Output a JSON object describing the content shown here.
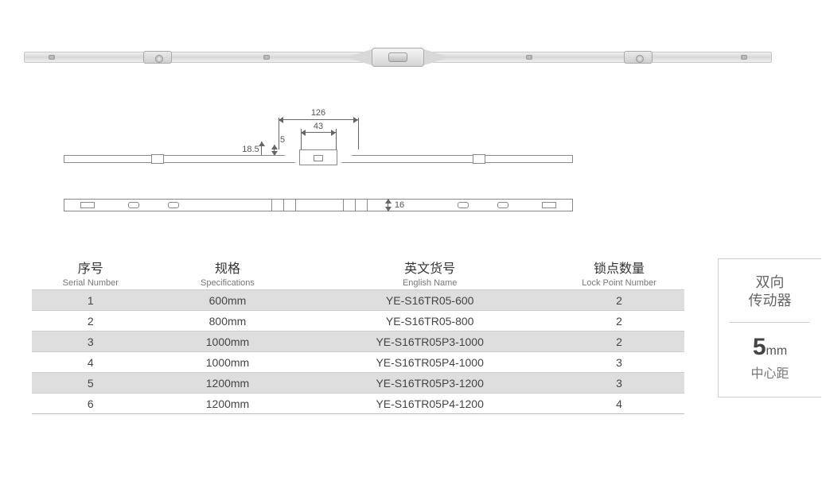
{
  "dimensions": {
    "w_outer": "126",
    "w_inner": "43",
    "h_outer": "18.5",
    "h_inner": "5",
    "rail_h": "16"
  },
  "table": {
    "headers": [
      {
        "cn": "序号",
        "en": "Serial Number"
      },
      {
        "cn": "规格",
        "en": "Specifications"
      },
      {
        "cn": "英文货号",
        "en": "English Name"
      },
      {
        "cn": "锁点数量",
        "en": "Lock Point Number"
      }
    ],
    "rows": [
      {
        "sn": "1",
        "spec": "600mm",
        "code": "YE-S16TR05-600",
        "locks": "2"
      },
      {
        "sn": "2",
        "spec": "800mm",
        "code": "YE-S16TR05-800",
        "locks": "2"
      },
      {
        "sn": "3",
        "spec": "1000mm",
        "code": "YE-S16TR05P3-1000",
        "locks": "2"
      },
      {
        "sn": "4",
        "spec": "1000mm",
        "code": "YE-S16TR05P4-1000",
        "locks": "3"
      },
      {
        "sn": "5",
        "spec": "1200mm",
        "code": "YE-S16TR05P3-1200",
        "locks": "3"
      },
      {
        "sn": "6",
        "spec": "1200mm",
        "code": "YE-S16TR05P4-1200",
        "locks": "4"
      }
    ],
    "col_widths": [
      "18%",
      "24%",
      "38%",
      "20%"
    ],
    "shade_color": "#dedede",
    "border_color": "#cccccc",
    "text_color": "#444444"
  },
  "side_card": {
    "title_line1": "双向",
    "title_line2": "传动器",
    "big_value": "5",
    "big_unit": "mm",
    "sub_label": "中心距",
    "border_color": "#d0d0d0"
  },
  "colors": {
    "background": "#ffffff",
    "diagram_stroke": "#888888",
    "dim_text": "#555555"
  }
}
